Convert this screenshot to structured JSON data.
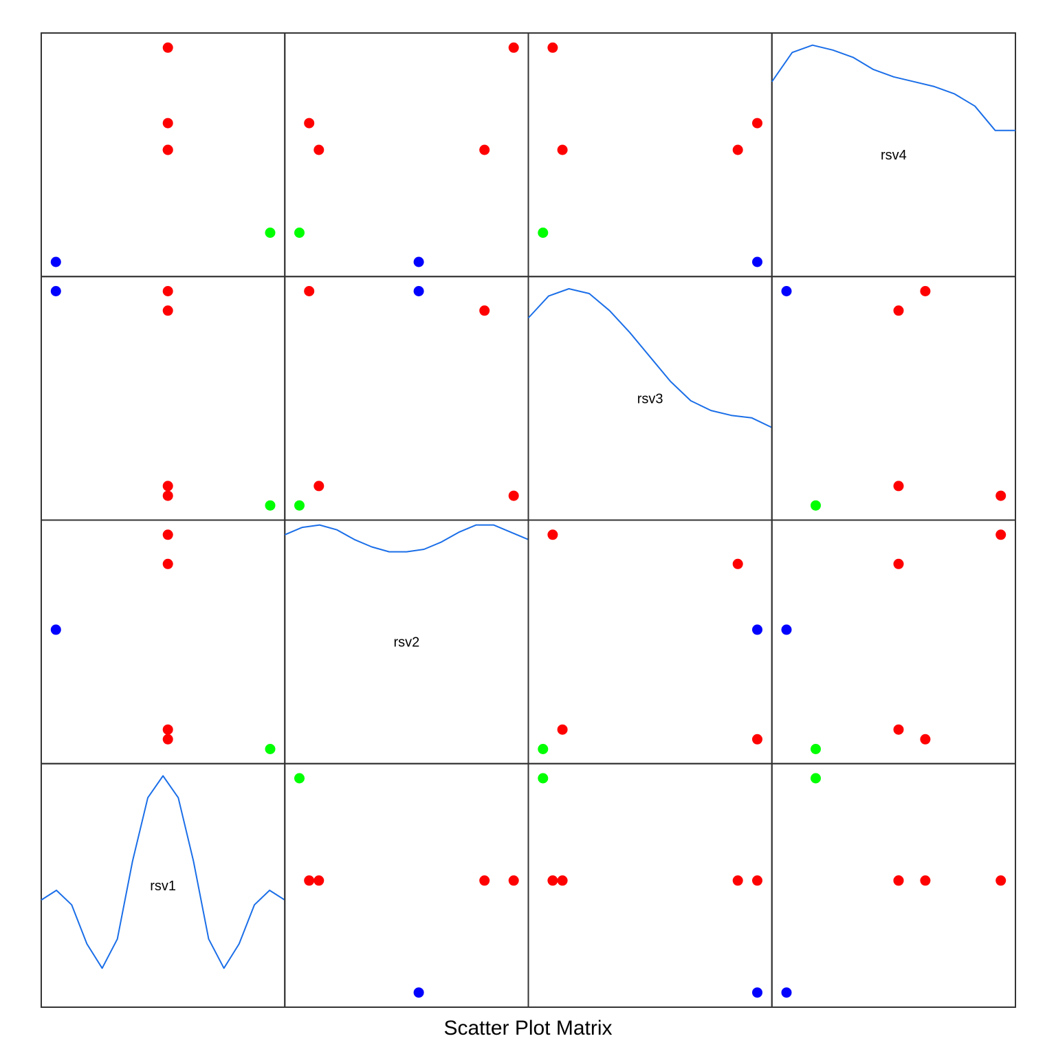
{
  "chart_data": {
    "type": "scatter",
    "title": "Scatter Plot Matrix",
    "variables": [
      "rsv1",
      "rsv2",
      "rsv3",
      "rsv4"
    ],
    "observations": [
      {
        "rsv1": 0.06,
        "rsv2": 0.55,
        "rsv3": 0.94,
        "rsv4": 0.06,
        "color": "#0000ff"
      },
      {
        "rsv1": 0.52,
        "rsv2": 0.94,
        "rsv3": 0.1,
        "rsv4": 0.94,
        "color": "#ff0000"
      },
      {
        "rsv1": 0.52,
        "rsv2": 0.1,
        "rsv3": 0.94,
        "rsv4": 0.63,
        "color": "#ff0000"
      },
      {
        "rsv1": 0.94,
        "rsv2": 0.06,
        "rsv3": 0.06,
        "rsv4": 0.18,
        "color": "#00ff00"
      },
      {
        "rsv1": 0.52,
        "rsv2": 0.82,
        "rsv3": 0.86,
        "rsv4": 0.52,
        "color": "#ff0000"
      },
      {
        "rsv1": 0.52,
        "rsv2": 0.14,
        "rsv3": 0.14,
        "rsv4": 0.52,
        "color": "#ff0000"
      }
    ],
    "density_curves": {
      "rsv1": [
        0.44,
        0.48,
        0.42,
        0.26,
        0.16,
        0.28,
        0.6,
        0.86,
        0.95,
        0.86,
        0.6,
        0.28,
        0.16,
        0.26,
        0.42,
        0.48,
        0.44
      ],
      "rsv2": [
        0.94,
        0.97,
        0.98,
        0.96,
        0.92,
        0.89,
        0.87,
        0.87,
        0.88,
        0.91,
        0.95,
        0.98,
        0.98,
        0.95,
        0.92
      ],
      "rsv3": [
        0.83,
        0.92,
        0.95,
        0.93,
        0.86,
        0.77,
        0.67,
        0.57,
        0.49,
        0.45,
        0.43,
        0.42,
        0.38
      ],
      "rsv4": [
        0.8,
        0.92,
        0.95,
        0.93,
        0.9,
        0.85,
        0.82,
        0.8,
        0.78,
        0.75,
        0.7,
        0.6,
        0.6
      ],
      "color": "#1a6ee8"
    },
    "grid": false,
    "legend": "none",
    "frame_color": "#333333"
  }
}
